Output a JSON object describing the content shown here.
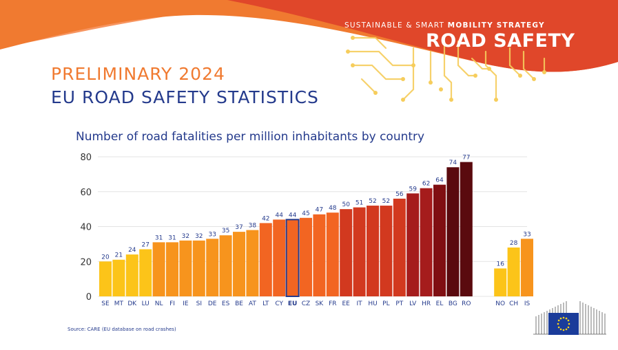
{
  "header": {
    "eyebrow_prefix": "SUSTAINABLE & SMART ",
    "eyebrow_bold": "MOBILITY STRATEGY",
    "banner_title": "ROAD SAFETY"
  },
  "headline": {
    "line1": "PRELIMINARY 2024",
    "line2": "EU ROAD SAFETY STATISTICS"
  },
  "source_note": "Source: CARE (EU database on road crashes)",
  "colors": {
    "banner_orange": "#f07a30",
    "banner_red": "#e0472a",
    "navy": "#243a8c",
    "circuit_yellow": "#f6cd5c"
  },
  "chart_data": {
    "type": "bar",
    "title": "Number of road fatalities per million inhabitants by country",
    "xlabel": "",
    "ylabel": "",
    "ylim": [
      0,
      80
    ],
    "yticks": [
      0,
      20,
      40,
      60,
      80
    ],
    "grid": true,
    "highlight": "EU",
    "categories": [
      "SE",
      "MT",
      "DK",
      "LU",
      "NL",
      "FI",
      "IE",
      "SI",
      "DE",
      "ES",
      "BE",
      "AT",
      "LT",
      "CY",
      "EU",
      "CZ",
      "SK",
      "FR",
      "EE",
      "IT",
      "HU",
      "PL",
      "PT",
      "LV",
      "HR",
      "EL",
      "BG",
      "RO",
      "NO",
      "CH",
      "IS"
    ],
    "values": [
      20,
      21,
      24,
      27,
      31,
      31,
      32,
      32,
      33,
      35,
      37,
      38,
      42,
      44,
      44,
      45,
      47,
      48,
      50,
      51,
      52,
      52,
      56,
      59,
      62,
      64,
      74,
      77,
      16,
      28,
      33
    ],
    "gap_before": "NO",
    "color_scale": [
      "#fcc419",
      "#f7941d",
      "#f26522",
      "#d2391f",
      "#a51c1c",
      "#800f12",
      "#5a0a0e"
    ]
  }
}
